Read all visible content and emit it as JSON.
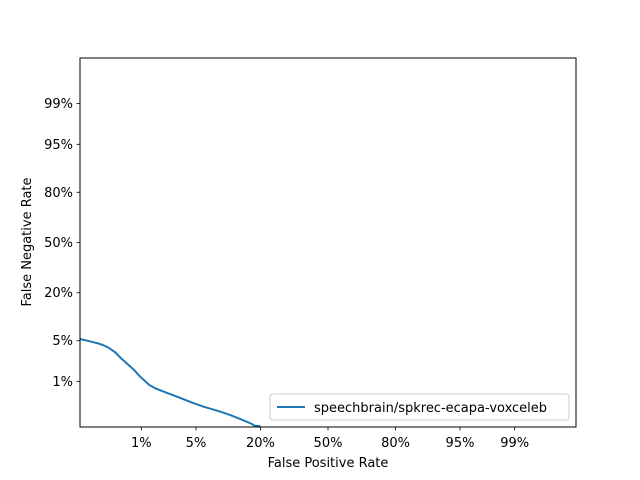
{
  "chart_data": {
    "type": "line",
    "title": "",
    "xlabel": "False Positive Rate",
    "ylabel": "False Negative Rate",
    "x_scale": "probit",
    "y_scale": "probit",
    "xlim": [
      0.001,
      0.999
    ],
    "ylim": [
      0.001,
      0.999
    ],
    "x_ticks": [
      {
        "value": 0.01,
        "label": "1%"
      },
      {
        "value": 0.05,
        "label": "5%"
      },
      {
        "value": 0.2,
        "label": "20%"
      },
      {
        "value": 0.5,
        "label": "50%"
      },
      {
        "value": 0.8,
        "label": "80%"
      },
      {
        "value": 0.95,
        "label": "95%"
      },
      {
        "value": 0.99,
        "label": "99%"
      }
    ],
    "y_ticks": [
      {
        "value": 0.01,
        "label": "1%"
      },
      {
        "value": 0.05,
        "label": "5%"
      },
      {
        "value": 0.2,
        "label": "20%"
      },
      {
        "value": 0.5,
        "label": "50%"
      },
      {
        "value": 0.8,
        "label": "80%"
      },
      {
        "value": 0.95,
        "label": "95%"
      },
      {
        "value": 0.99,
        "label": "99%"
      }
    ],
    "grid": false,
    "legend_position": "lower-right",
    "series": [
      {
        "name": "speechbrain/spkrec-ecapa-voxceleb",
        "color": "#1f77b4",
        "x": [
          0.001,
          0.0015,
          0.002,
          0.0025,
          0.003,
          0.004,
          0.005,
          0.0065,
          0.008,
          0.0095,
          0.011,
          0.013,
          0.016,
          0.02,
          0.025,
          0.032,
          0.04,
          0.05,
          0.06,
          0.075,
          0.09,
          0.11,
          0.13,
          0.15,
          0.17,
          0.18,
          0.19,
          0.2
        ],
        "y": [
          0.053,
          0.049,
          0.046,
          0.043,
          0.04,
          0.033,
          0.026,
          0.02,
          0.016,
          0.0125,
          0.0105,
          0.0085,
          0.0072,
          0.0063,
          0.0055,
          0.0047,
          0.004,
          0.0034,
          0.003,
          0.0026,
          0.0023,
          0.00195,
          0.00165,
          0.0014,
          0.0012,
          0.00108,
          0.00103,
          0.001
        ]
      }
    ]
  }
}
